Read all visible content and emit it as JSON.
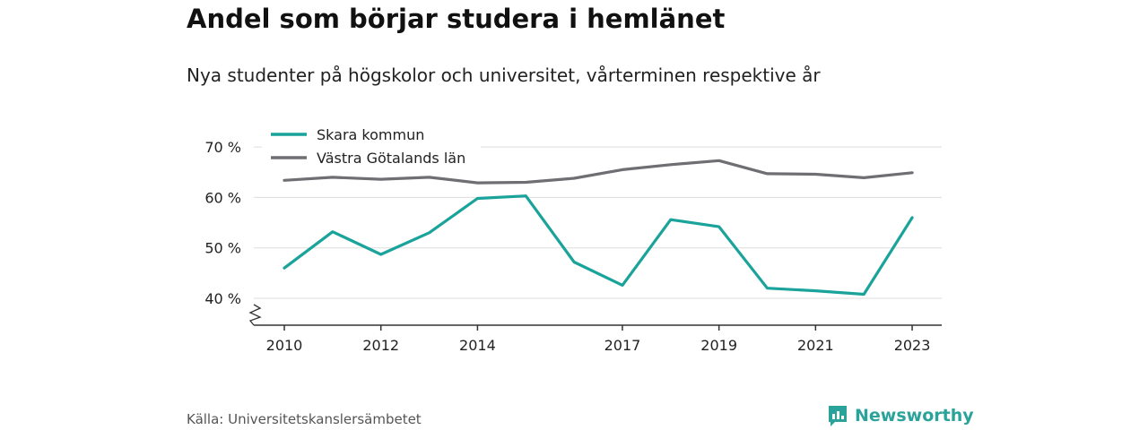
{
  "title": "Andel som börjar studera i hemlänet",
  "subtitle": "Nya studenter på högskolor och universitet, vårterminen respektive år",
  "source": "Källa: Universitetskanslersämbetet",
  "brand": "Newsworthy",
  "colors": {
    "series_1": "#1aa39a",
    "series_2": "#6e6e73",
    "grid": "#dddddd",
    "brand": "#2aa39a"
  },
  "chart_data": {
    "type": "line",
    "x": [
      2010,
      2011,
      2012,
      2013,
      2014,
      2015,
      2016,
      2017,
      2018,
      2019,
      2020,
      2021,
      2022,
      2023
    ],
    "series": [
      {
        "name": "Skara kommun",
        "values": [
          46.0,
          53.2,
          48.7,
          53.0,
          59.8,
          60.3,
          47.2,
          42.6,
          55.6,
          54.2,
          42.0,
          41.5,
          40.8,
          56.0
        ]
      },
      {
        "name": "Västra Götalands län",
        "values": [
          63.4,
          64.0,
          63.6,
          64.0,
          62.9,
          63.0,
          63.8,
          65.5,
          66.5,
          67.3,
          64.7,
          64.6,
          63.9,
          64.9
        ]
      }
    ],
    "y_ticks": [
      40,
      50,
      60,
      70
    ],
    "y_tick_labels": [
      "40 %",
      "50 %",
      "60 %",
      "70 %"
    ],
    "x_ticks": [
      2010,
      2012,
      2014,
      2017,
      2019,
      2021,
      2023
    ],
    "x_tick_labels": [
      "2010",
      "2012",
      "2014",
      "2017",
      "2019",
      "2021",
      "2023"
    ],
    "ylim": [
      40,
      70
    ],
    "y_axis_break": true,
    "grid": true,
    "legend": "top-left"
  }
}
